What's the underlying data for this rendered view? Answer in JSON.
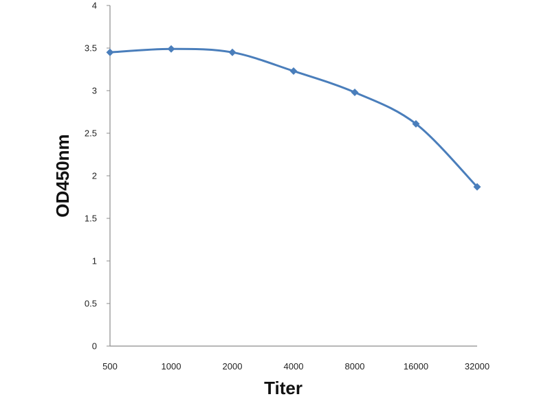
{
  "chart_data": {
    "type": "line",
    "title": "",
    "xlabel": "Titer",
    "ylabel": "OD450nm",
    "categories": [
      "500",
      "1000",
      "2000",
      "4000",
      "8000",
      "16000",
      "32000"
    ],
    "series": [
      {
        "values": [
          3.45,
          3.49,
          3.45,
          3.23,
          2.98,
          2.61,
          1.87
        ]
      }
    ],
    "ylim": [
      0,
      4
    ],
    "yticks": [
      "0",
      "0.5",
      "1",
      "1.5",
      "2",
      "2.5",
      "3",
      "3.5",
      "4"
    ],
    "grid": false,
    "legend": "none",
    "line_style": "smooth",
    "marker": "diamond",
    "colors": {
      "series": "#4a7ebb",
      "axis": "#8c8c8c"
    }
  }
}
